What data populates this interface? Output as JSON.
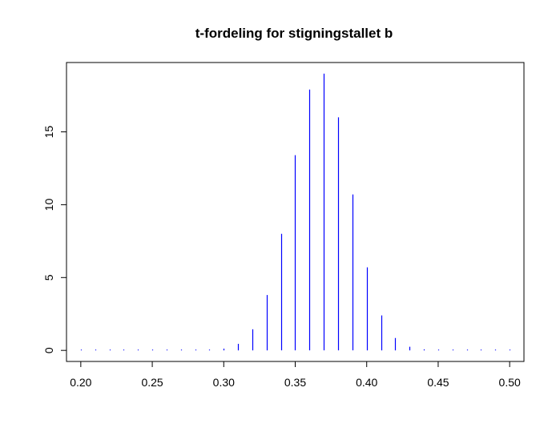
{
  "chart_data": {
    "type": "bar",
    "title": "t-fordeling for stigningstallet b",
    "xlabel": "",
    "ylabel": "",
    "x": [
      0.2,
      0.21,
      0.22,
      0.23,
      0.24,
      0.25,
      0.26,
      0.27,
      0.28,
      0.29,
      0.3,
      0.31,
      0.32,
      0.33,
      0.34,
      0.35,
      0.36,
      0.37,
      0.38,
      0.39,
      0.4,
      0.41,
      0.42,
      0.43,
      0.44,
      0.45,
      0.46,
      0.47,
      0.48,
      0.49,
      0.5
    ],
    "values": [
      0.0,
      0.0,
      0.0,
      0.0,
      0.0,
      0.0,
      0.0,
      0.01,
      0.02,
      0.04,
      0.12,
      0.45,
      1.45,
      3.8,
      8.0,
      13.4,
      17.9,
      19.0,
      16.0,
      10.7,
      5.7,
      2.4,
      0.85,
      0.25,
      0.07,
      0.02,
      0.01,
      0.0,
      0.0,
      0.0,
      0.0
    ],
    "xlim": [
      0.19,
      0.51
    ],
    "ylim": [
      -0.76,
      19.76
    ],
    "xticks": [
      "0.20",
      "0.25",
      "0.30",
      "0.35",
      "0.40",
      "0.45",
      "0.50"
    ],
    "yticks": [
      "0",
      "5",
      "10",
      "15"
    ],
    "bar_color": "#0000ff",
    "grid": false,
    "legend": "none"
  }
}
